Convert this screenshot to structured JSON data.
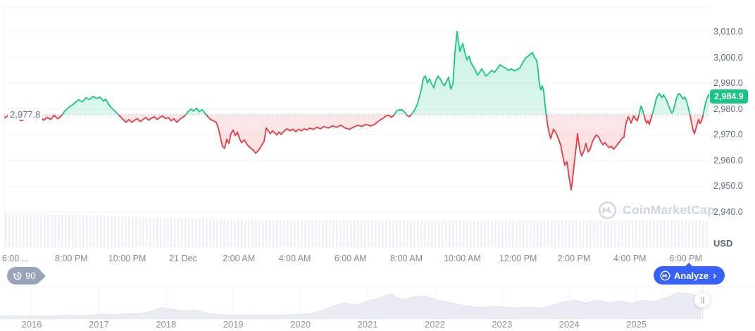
{
  "chart": {
    "history_count": "90",
    "analyze_label": "Analyze",
    "analyze_chevron": "›",
    "watermark": "CoinMarketCap"
  },
  "chart_data": {
    "type": "line",
    "currency": "USD",
    "last_price": "2,984.9",
    "baseline_label": "2,977.8",
    "baseline_price": 2977.8,
    "y_ticks": [
      "3,010.0",
      "3,000.0",
      "2,990.0",
      "2,980.0",
      "2,970.0",
      "2,960.0",
      "2,950.0",
      "2,940.0"
    ],
    "y_axis_range": [
      2940,
      3010
    ],
    "x_ticks": [
      "6:00 ...",
      "8:00 PM",
      "10:00 PM",
      "21 Dec",
      "2:00 AM",
      "4:00 AM",
      "6:00 AM",
      "8:00 AM",
      "10:00 AM",
      "12:00 PM",
      "2:00 PM",
      "4:00 PM",
      "6:00 PM"
    ],
    "colors": {
      "up": "#16c784",
      "down": "#ea3943",
      "accent": "#3861fb"
    },
    "series": [
      [
        6,
        2976.4
      ],
      [
        12,
        2977.5
      ],
      [
        18,
        2976.2
      ],
      [
        24,
        2977.0
      ],
      [
        30,
        2975.4
      ],
      [
        36,
        2976.2
      ],
      [
        42,
        2977.0
      ],
      [
        48,
        2977.5
      ],
      [
        52,
        2975.9
      ],
      [
        57,
        2977.0
      ],
      [
        62,
        2975.6
      ],
      [
        67,
        2976.7
      ],
      [
        72,
        2975.9
      ],
      [
        77,
        2977.5
      ],
      [
        82,
        2976.2
      ],
      [
        87,
        2977.3
      ],
      [
        92,
        2979.2
      ],
      [
        97,
        2980.5
      ],
      [
        102,
        2981.4
      ],
      [
        107,
        2982.5
      ],
      [
        112,
        2983.6
      ],
      [
        117,
        2982.7
      ],
      [
        122,
        2984.4
      ],
      [
        127,
        2983.6
      ],
      [
        132,
        2984.9
      ],
      [
        137,
        2984.1
      ],
      [
        142,
        2984.6
      ],
      [
        147,
        2983.0
      ],
      [
        150,
        2983.8
      ],
      [
        154,
        2981.9
      ],
      [
        158,
        2980.5
      ],
      [
        163,
        2979.2
      ],
      [
        167,
        2978.1
      ],
      [
        171,
        2977.0
      ],
      [
        175,
        2975.9
      ],
      [
        179,
        2974.8
      ],
      [
        183,
        2975.9
      ],
      [
        187,
        2974.8
      ],
      [
        191,
        2975.6
      ],
      [
        195,
        2976.2
      ],
      [
        199,
        2975.1
      ],
      [
        203,
        2975.9
      ],
      [
        207,
        2976.7
      ],
      [
        211,
        2975.6
      ],
      [
        215,
        2976.4
      ],
      [
        219,
        2977.0
      ],
      [
        223,
        2975.9
      ],
      [
        227,
        2976.7
      ],
      [
        231,
        2977.3
      ],
      [
        235,
        2976.2
      ],
      [
        239,
        2976.7
      ],
      [
        243,
        2975.4
      ],
      [
        247,
        2976.2
      ],
      [
        251,
        2974.8
      ],
      [
        255,
        2975.9
      ],
      [
        259,
        2976.7
      ],
      [
        263,
        2977.5
      ],
      [
        267,
        2978.9
      ],
      [
        271,
        2980.0
      ],
      [
        275,
        2979.2
      ],
      [
        279,
        2980.3
      ],
      [
        283,
        2978.9
      ],
      [
        287,
        2979.7
      ],
      [
        291,
        2978.4
      ],
      [
        295,
        2977.0
      ],
      [
        299,
        2975.9
      ],
      [
        303,
        2975.4
      ],
      [
        307,
        2974.8
      ],
      [
        310,
        2972.6
      ],
      [
        313,
        2968.8
      ],
      [
        316,
        2965.5
      ],
      [
        319,
        2964.7
      ],
      [
        322,
        2968.3
      ],
      [
        325,
        2966.6
      ],
      [
        328,
        2970.4
      ],
      [
        331,
        2971.8
      ],
      [
        334,
        2969.6
      ],
      [
        337,
        2971.0
      ],
      [
        340,
        2968.5
      ],
      [
        343,
        2966.9
      ],
      [
        347,
        2968.0
      ],
      [
        351,
        2966.1
      ],
      [
        355,
        2965.0
      ],
      [
        359,
        2964.2
      ],
      [
        363,
        2962.8
      ],
      [
        366,
        2963.6
      ],
      [
        369,
        2964.7
      ],
      [
        372,
        2966.1
      ],
      [
        375,
        2967.4
      ],
      [
        378,
        2972.6
      ],
      [
        381,
        2971.5
      ],
      [
        384,
        2970.4
      ],
      [
        387,
        2971.5
      ],
      [
        390,
        2970.7
      ],
      [
        393,
        2969.9
      ],
      [
        396,
        2971.0
      ],
      [
        399,
        2970.1
      ],
      [
        402,
        2971.0
      ],
      [
        405,
        2971.8
      ],
      [
        408,
        2972.3
      ],
      [
        412,
        2971.5
      ],
      [
        416,
        2972.1
      ],
      [
        420,
        2971.2
      ],
      [
        424,
        2972.1
      ],
      [
        428,
        2971.5
      ],
      [
        432,
        2972.3
      ],
      [
        436,
        2971.8
      ],
      [
        440,
        2972.6
      ],
      [
        445,
        2972.1
      ],
      [
        450,
        2972.9
      ],
      [
        455,
        2972.3
      ],
      [
        460,
        2973.2
      ],
      [
        466,
        2972.6
      ],
      [
        472,
        2973.4
      ],
      [
        478,
        2972.9
      ],
      [
        484,
        2973.7
      ],
      [
        490,
        2972.6
      ],
      [
        496,
        2972.1
      ],
      [
        502,
        2972.9
      ],
      [
        508,
        2973.7
      ],
      [
        514,
        2973.2
      ],
      [
        520,
        2974.0
      ],
      [
        526,
        2973.4
      ],
      [
        532,
        2974.0
      ],
      [
        538,
        2975.4
      ],
      [
        544,
        2976.4
      ],
      [
        548,
        2977.3
      ],
      [
        552,
        2977.5
      ],
      [
        556,
        2976.7
      ],
      [
        560,
        2977.8
      ],
      [
        563,
        2979.2
      ],
      [
        567,
        2979.7
      ],
      [
        571,
        2979.7
      ],
      [
        575,
        2978.6
      ],
      [
        578,
        2977.5
      ],
      [
        581,
        2977.0
      ],
      [
        584,
        2977.8
      ],
      [
        588,
        2979.2
      ],
      [
        592,
        2981.4
      ],
      [
        595,
        2984.1
      ],
      [
        598,
        2987.4
      ],
      [
        601,
        2991.7
      ],
      [
        604,
        2992.8
      ],
      [
        607,
        2990.1
      ],
      [
        610,
        2991.7
      ],
      [
        613,
        2989.6
      ],
      [
        616,
        2988.2
      ],
      [
        619,
        2991.2
      ],
      [
        622,
        2992.8
      ],
      [
        625,
        2991.7
      ],
      [
        628,
        2990.1
      ],
      [
        631,
        2989.0
      ],
      [
        634,
        2990.7
      ],
      [
        637,
        2992.3
      ],
      [
        640,
        2987.7
      ],
      [
        643,
        2989.6
      ],
      [
        646,
        3001.9
      ],
      [
        649,
        3010.1
      ],
      [
        651,
        3005.9
      ],
      [
        653,
        3002.4
      ],
      [
        655,
        3003.8
      ],
      [
        657,
        3005.4
      ],
      [
        660,
        3001.9
      ],
      [
        663,
        2999.1
      ],
      [
        666,
        3000.5
      ],
      [
        669,
        2997.8
      ],
      [
        672,
        2996.4
      ],
      [
        675,
        2995.0
      ],
      [
        678,
        2993.1
      ],
      [
        681,
        2994.2
      ],
      [
        684,
        2995.6
      ],
      [
        687,
        2994.2
      ],
      [
        690,
        2992.8
      ],
      [
        694,
        2993.7
      ],
      [
        698,
        2995.0
      ],
      [
        702,
        2994.2
      ],
      [
        706,
        2995.6
      ],
      [
        710,
        2997.2
      ],
      [
        714,
        2996.4
      ],
      [
        718,
        2995.9
      ],
      [
        722,
        2995.0
      ],
      [
        726,
        2995.6
      ],
      [
        730,
        2994.8
      ],
      [
        734,
        2995.3
      ],
      [
        738,
        2995.9
      ],
      [
        742,
        2997.8
      ],
      [
        746,
        2999.7
      ],
      [
        750,
        3000.5
      ],
      [
        753,
        3001.3
      ],
      [
        756,
        3001.9
      ],
      [
        759,
        2999.9
      ],
      [
        762,
        2998.9
      ],
      [
        764,
        2995.0
      ],
      [
        766,
        2989.6
      ],
      [
        768,
        2987.4
      ],
      [
        770,
        2989.0
      ],
      [
        772,
        2986.8
      ],
      [
        774,
        2981.4
      ],
      [
        776,
        2977.0
      ],
      [
        778,
        2972.9
      ],
      [
        780,
        2970.4
      ],
      [
        782,
        2968.5
      ],
      [
        784,
        2970.4
      ],
      [
        786,
        2972.1
      ],
      [
        788,
        2971.2
      ],
      [
        790,
        2970.4
      ],
      [
        793,
        2968.3
      ],
      [
        796,
        2966.1
      ],
      [
        799,
        2961.7
      ],
      [
        802,
        2958.1
      ],
      [
        805,
        2959.5
      ],
      [
        808,
        2953.5
      ],
      [
        811,
        2948.6
      ],
      [
        813,
        2952.7
      ],
      [
        815,
        2958.1
      ],
      [
        818,
        2965.0
      ],
      [
        820,
        2970.4
      ],
      [
        823,
        2964.4
      ],
      [
        826,
        2961.7
      ],
      [
        829,
        2963.6
      ],
      [
        832,
        2966.6
      ],
      [
        835,
        2963.3
      ],
      [
        838,
        2964.4
      ],
      [
        841,
        2967.2
      ],
      [
        844,
        2968.8
      ],
      [
        847,
        2969.9
      ],
      [
        850,
        2969.1
      ],
      [
        853,
        2967.4
      ],
      [
        856,
        2966.1
      ],
      [
        859,
        2966.9
      ],
      [
        862,
        2965.8
      ],
      [
        865,
        2965.0
      ],
      [
        868,
        2965.5
      ],
      [
        871,
        2964.4
      ],
      [
        874,
        2965.2
      ],
      [
        877,
        2966.3
      ],
      [
        880,
        2967.4
      ],
      [
        883,
        2968.5
      ],
      [
        886,
        2969.1
      ],
      [
        888,
        2973.2
      ],
      [
        890,
        2975.4
      ],
      [
        892,
        2977.0
      ],
      [
        894,
        2975.9
      ],
      [
        896,
        2974.5
      ],
      [
        898,
        2975.9
      ],
      [
        900,
        2977.3
      ],
      [
        902,
        2976.2
      ],
      [
        905,
        2975.4
      ],
      [
        908,
        2978.6
      ],
      [
        910,
        2981.1
      ],
      [
        912,
        2980.0
      ],
      [
        914,
        2978.1
      ],
      [
        916,
        2975.9
      ],
      [
        918,
        2974.5
      ],
      [
        920,
        2975.4
      ],
      [
        922,
        2974.0
      ],
      [
        924,
        2975.9
      ],
      [
        926,
        2977.8
      ],
      [
        928,
        2979.5
      ],
      [
        930,
        2981.9
      ],
      [
        932,
        2984.1
      ],
      [
        934,
        2985.2
      ],
      [
        936,
        2986.0
      ],
      [
        938,
        2985.2
      ],
      [
        940,
        2984.4
      ],
      [
        942,
        2985.5
      ],
      [
        944,
        2984.6
      ],
      [
        946,
        2983.6
      ],
      [
        948,
        2982.2
      ],
      [
        950,
        2980.8
      ],
      [
        952,
        2979.5
      ],
      [
        954,
        2978.4
      ],
      [
        956,
        2979.2
      ],
      [
        958,
        2981.4
      ],
      [
        960,
        2983.6
      ],
      [
        962,
        2985.2
      ],
      [
        964,
        2986.0
      ],
      [
        966,
        2985.5
      ],
      [
        968,
        2984.6
      ],
      [
        970,
        2983.8
      ],
      [
        972,
        2984.6
      ],
      [
        974,
        2983.8
      ],
      [
        976,
        2981.9
      ],
      [
        978,
        2979.7
      ],
      [
        980,
        2977.3
      ],
      [
        982,
        2974.5
      ],
      [
        984,
        2971.8
      ],
      [
        986,
        2970.4
      ],
      [
        988,
        2972.3
      ],
      [
        990,
        2974.3
      ],
      [
        992,
        2975.9
      ],
      [
        994,
        2974.3
      ],
      [
        996,
        2975.4
      ],
      [
        998,
        2977.3
      ],
      [
        1000,
        2980.0
      ],
      [
        1002,
        2982.5
      ],
      [
        1004,
        2984.1
      ],
      [
        1006,
        2985.5
      ],
      [
        1007,
        2984.9
      ]
    ],
    "volume_profile": [
      1.0,
      0.98,
      0.97,
      0.96,
      0.95,
      0.93,
      0.92,
      0.9,
      0.88,
      0.87,
      0.85,
      0.84,
      0.83,
      0.82,
      0.82,
      0.81,
      0.8,
      0.8,
      0.79,
      0.8,
      0.79,
      0.78,
      0.79,
      0.78,
      0.78,
      0.79,
      0.78,
      0.77,
      0.78,
      0.79,
      0.78,
      0.79,
      0.8,
      0.79,
      0.78,
      0.79,
      0.8,
      0.81,
      0.8,
      0.79
    ],
    "navigator": {
      "years": [
        "2016",
        "2017",
        "2018",
        "2019",
        "2020",
        "2021",
        "2022",
        "2023",
        "2024",
        "2025"
      ],
      "profile": [
        0.1,
        0.1,
        0.09,
        0.1,
        0.09,
        0.1,
        0.11,
        0.1,
        0.12,
        0.15,
        0.13,
        0.17,
        0.16,
        0.22,
        0.35,
        0.3,
        0.25,
        0.28,
        0.18,
        0.14,
        0.12,
        0.12,
        0.11,
        0.12,
        0.12,
        0.13,
        0.14,
        0.16,
        0.25,
        0.4,
        0.5,
        0.44,
        0.55,
        0.65,
        0.78,
        0.6,
        0.68,
        0.72,
        0.6,
        0.52,
        0.44,
        0.38,
        0.36,
        0.4,
        0.36,
        0.34,
        0.37,
        0.34,
        0.42,
        0.52,
        0.58,
        0.5,
        0.58,
        0.5,
        0.56,
        0.48,
        0.58,
        0.54,
        0.66,
        0.82,
        0.78,
        0.7
      ]
    }
  }
}
